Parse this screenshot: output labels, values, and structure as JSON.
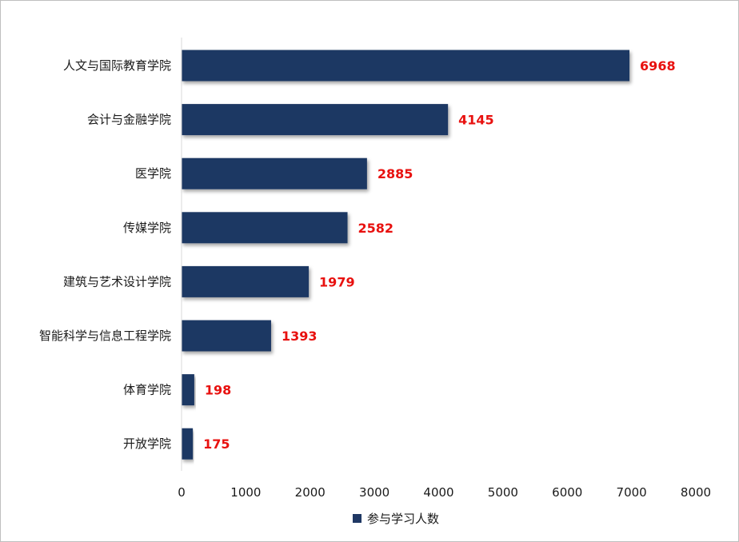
{
  "chart_data": {
    "type": "bar",
    "orientation": "horizontal",
    "categories": [
      "人文与国际教育学院",
      "会计与金融学院",
      "医学院",
      "传媒学院",
      "建筑与艺术设计学院",
      "智能科学与信息工程学院",
      "体育学院",
      "开放学院"
    ],
    "series": [
      {
        "name": "参与学习人数",
        "values": [
          6968,
          4145,
          2885,
          2582,
          1979,
          1393,
          198,
          175
        ]
      }
    ],
    "xlim": [
      0,
      8000
    ],
    "xticks": [
      0,
      1000,
      2000,
      3000,
      4000,
      5000,
      6000,
      7000,
      8000
    ],
    "grid": false,
    "legend_position": "bottom",
    "colors": {
      "bar": "#1f3864",
      "data_label": "#e8110f",
      "axis": "#d9d9d9"
    }
  }
}
